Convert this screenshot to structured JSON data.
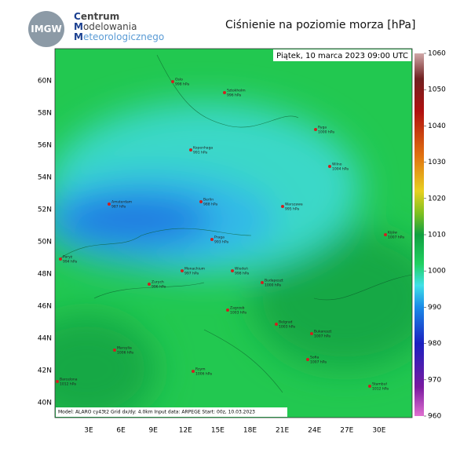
{
  "header": {
    "logo": "IMGW",
    "org": [
      "Centrum",
      "Modelowania",
      "Meteorologicznego"
    ],
    "title": "Ciśnienie na poziomie morza [hPa]"
  },
  "map": {
    "timestamp": "Piątek, 10 marca 2023 09:00 UTC",
    "lat_labels": [
      "60N",
      "58N",
      "56N",
      "54N",
      "52N",
      "50N",
      "48N",
      "46N",
      "44N",
      "42N",
      "40N"
    ],
    "lon_labels": [
      "3E",
      "6E",
      "9E",
      "12E",
      "15E",
      "18E",
      "21E",
      "24E",
      "27E",
      "30E"
    ],
    "cities": [
      {
        "name": "Oslo",
        "pressure": "998 hPa"
      },
      {
        "name": "Sztokholm",
        "pressure": "996 hPa"
      },
      {
        "name": "Ryga",
        "pressure": "1000 hPa"
      },
      {
        "name": "Kopenhaga",
        "pressure": "991 hPa"
      },
      {
        "name": "Wilno",
        "pressure": "1004 hPa"
      },
      {
        "name": "Amsterdam",
        "pressure": "987 hPa"
      },
      {
        "name": "Berlin",
        "pressure": "988 hPa"
      },
      {
        "name": "Warszawa",
        "pressure": "995 hPa"
      },
      {
        "name": "Kijów",
        "pressure": "1007 hPa"
      },
      {
        "name": "Praga",
        "pressure": "993 hPa"
      },
      {
        "name": "Paryż",
        "pressure": "994 hPa"
      },
      {
        "name": "Monachium",
        "pressure": "997 hPa"
      },
      {
        "name": "Wiedeń",
        "pressure": "998 hPa"
      },
      {
        "name": "Zurych",
        "pressure": "996 hPa"
      },
      {
        "name": "Budapeszt",
        "pressure": "1000 hPa"
      },
      {
        "name": "Zagrzeb",
        "pressure": "1003 hPa"
      },
      {
        "name": "Belgrad",
        "pressure": "1003 hPa"
      },
      {
        "name": "Bukareszt",
        "pressure": "1007 hPa"
      },
      {
        "name": "Marsylia",
        "pressure": "1006 hPa"
      },
      {
        "name": "Sofia",
        "pressure": "1007 hPa"
      },
      {
        "name": "Rzym",
        "pressure": "1006 hPa"
      },
      {
        "name": "Barcelona",
        "pressure": "1012 hPa"
      },
      {
        "name": "Stambuł",
        "pressure": "1012 hPa"
      }
    ],
    "footer": "Model: ALARO cy43t2  Grid dx/dy: 4.0km  Input data: ARPEGE  Start: 00z, 10.03.2023"
  },
  "colorbar": {
    "ticks": [
      1060,
      1050,
      1040,
      1030,
      1020,
      1010,
      1000,
      990,
      980,
      970,
      960
    ]
  }
}
